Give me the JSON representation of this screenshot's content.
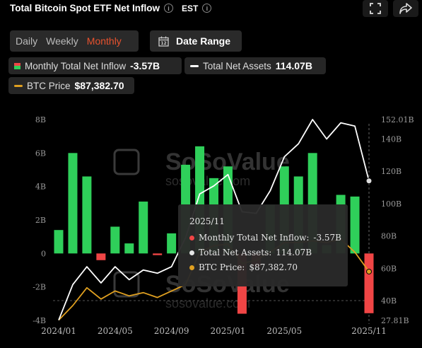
{
  "header": {
    "title": "Total Bitcoin Spot ETF Net Inflow",
    "timezone": "EST"
  },
  "controls": {
    "tabs": [
      {
        "label": "Daily",
        "active": false
      },
      {
        "label": "Weekly",
        "active": false
      },
      {
        "label": "Monthly",
        "active": true
      }
    ],
    "date_range_label": "Date Range",
    "calendar_day": "12"
  },
  "legend": {
    "inflow": {
      "label": "Monthly Total Net Inflow",
      "value": "-3.57B"
    },
    "assets": {
      "label": "Total Net Assets",
      "value": "114.07B"
    },
    "btc": {
      "label": "BTC Price",
      "value": "$87,382.70"
    }
  },
  "tooltip": {
    "title": "2025/11",
    "rows": [
      {
        "label": "Monthly Total Net Inflow:",
        "value": "-3.57B"
      },
      {
        "label": "Total Net Assets:",
        "value": "114.07B"
      },
      {
        "label": "BTC Price:",
        "value": "$87,382.70"
      }
    ]
  },
  "watermark": "SoSoValue",
  "watermark_url": "sosovalue.com",
  "colors": {
    "positive": "#2fcf5a",
    "negative": "#f04545",
    "assets_line": "#ffffff",
    "btc_line": "#e0a020",
    "accent": "#e8522e"
  },
  "chart_data": {
    "type": "bar",
    "x": [
      "2024/01",
      "2024/02",
      "2024/03",
      "2024/04",
      "2024/05",
      "2024/06",
      "2024/07",
      "2024/08",
      "2024/09",
      "2024/10",
      "2024/11",
      "2024/12",
      "2025/01",
      "2025/02",
      "2025/03",
      "2025/04",
      "2025/05",
      "2025/06",
      "2025/07",
      "2025/08",
      "2025/09",
      "2025/10",
      "2025/11"
    ],
    "x_tick_labels": [
      "2024/01",
      "2024/05",
      "2024/09",
      "2025/01",
      "2025/05",
      "2025/11"
    ],
    "left_axis": {
      "ticks": [
        "-4B",
        "-2B",
        "0",
        "2B",
        "4B",
        "6B",
        "8B"
      ],
      "ylim": [
        -4,
        8
      ]
    },
    "right_axis": {
      "ticks": [
        "27.81B",
        "40B",
        "60B",
        "80B",
        "100B",
        "120B",
        "140B",
        "152.01B"
      ],
      "ylim": [
        27.81,
        152.01
      ]
    },
    "series": [
      {
        "name": "Monthly Total Net Inflow",
        "axis": "left",
        "type": "bar",
        "values": [
          1.4,
          6.0,
          4.6,
          -0.4,
          1.6,
          0.6,
          3.1,
          -0.1,
          1.2,
          5.3,
          6.4,
          4.5,
          5.2,
          -3.6,
          -0.8,
          2.9,
          5.2,
          4.6,
          6.0,
          0.5,
          3.5,
          3.4,
          -3.57
        ]
      },
      {
        "name": "Total Net Assets",
        "axis": "right",
        "type": "line",
        "values": [
          28.0,
          50.0,
          61.0,
          51.0,
          61.0,
          53.0,
          59.0,
          57.0,
          61.0,
          79.0,
          106.0,
          111.0,
          118.0,
          95.0,
          94.0,
          108.0,
          129.0,
          137.0,
          152.01,
          140.0,
          150.0,
          148.0,
          114.07
        ]
      },
      {
        "name": "BTC Price",
        "axis": "right",
        "type": "line",
        "values": [
          28.0,
          37.0,
          48.0,
          41.0,
          46.0,
          43.0,
          45.0,
          42.0,
          46.0,
          50.0,
          70.0,
          74.0,
          75.0,
          63.0,
          65.0,
          70.0,
          76.0,
          76.0,
          77.0,
          76.0,
          78.0,
          70.0,
          58.0
        ]
      }
    ],
    "grid": false,
    "highlighted": "2025/11"
  }
}
